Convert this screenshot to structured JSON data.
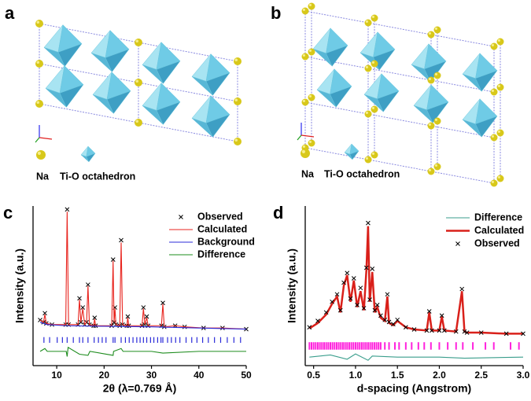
{
  "panels": [
    {
      "label": "a",
      "legend": [
        "Na",
        "Ti-O octahedron"
      ]
    },
    {
      "label": "b",
      "legend": [
        "Na",
        "Ti-O octahedron"
      ]
    }
  ],
  "chart_data": [
    {
      "type": "line",
      "label": "c",
      "xlabel": "2θ (λ=0.769 Å)",
      "ylabel": "Intensity (a.u.)",
      "xlim": [
        5,
        50
      ],
      "xticks": [
        10,
        20,
        30,
        40,
        50
      ],
      "ylim": [
        -30,
        110
      ],
      "series": [
        {
          "name": "Observed",
          "color": "#000000",
          "kind": "marker",
          "x": [
            6.5,
            7.2,
            7.5,
            7.8,
            9,
            11.9,
            12.2,
            12.5,
            14.5,
            14.8,
            15.1,
            15.5,
            15.9,
            16.3,
            16.6,
            16.9,
            17.8,
            18,
            18.2,
            21.6,
            21.9,
            22.1,
            22.3,
            22.5,
            23.3,
            23.6,
            23.9,
            24.8,
            25,
            25.2,
            28,
            28.3,
            28.6,
            29,
            29.3,
            32.1,
            32.4,
            32.7,
            35,
            37,
            41,
            45,
            50
          ],
          "values": [
            10,
            8,
            16,
            7,
            6,
            6,
            107,
            6,
            6,
            29,
            8,
            21,
            6,
            8,
            41,
            6,
            5,
            12,
            5,
            5,
            63,
            8,
            21,
            6,
            5,
            80,
            6,
            5,
            13,
            5,
            5,
            21,
            6,
            13,
            5,
            5,
            25,
            4,
            5,
            4,
            3,
            3,
            2
          ]
        },
        {
          "name": "Calculated",
          "color": "#e8251f",
          "kind": "line",
          "x": [
            6.5,
            7.2,
            7.5,
            7.8,
            9,
            11.9,
            12.2,
            12.5,
            14.5,
            14.8,
            15.1,
            15.5,
            15.9,
            16.3,
            16.6,
            16.9,
            17.8,
            18,
            18.2,
            21.6,
            21.9,
            22.1,
            22.3,
            22.5,
            23.3,
            23.6,
            23.9,
            24.8,
            25,
            25.2,
            28,
            28.3,
            28.6,
            29,
            29.3,
            32.1,
            32.4,
            32.7,
            35,
            37,
            41,
            45,
            50
          ],
          "values": [
            10,
            8,
            15,
            7,
            6,
            6,
            105,
            6,
            6,
            28,
            8,
            20,
            6,
            8,
            40,
            6,
            5,
            11,
            5,
            5,
            62,
            8,
            20,
            6,
            5,
            78,
            6,
            5,
            12,
            5,
            5,
            20,
            6,
            12,
            5,
            5,
            24,
            4,
            5,
            4,
            3,
            3,
            2
          ]
        },
        {
          "name": "Background",
          "color": "#2b2bd9",
          "kind": "line",
          "x": [
            6.5,
            8,
            12,
            20,
            30,
            40,
            50
          ],
          "values": [
            8,
            6,
            5,
            4.5,
            4,
            3,
            2
          ]
        },
        {
          "name": "Difference",
          "color": "#1e8c1e",
          "kind": "line",
          "x": [
            6.5,
            7.5,
            8,
            12,
            12.2,
            12.4,
            14.8,
            16.6,
            17,
            21.9,
            22,
            23.6,
            24,
            30,
            32.4,
            40,
            50
          ],
          "values": [
            -17.5,
            -15,
            -17.5,
            -17.5,
            -22,
            -14,
            -20,
            -21,
            -17.5,
            -21,
            -17.5,
            -15,
            -17.5,
            -17.5,
            -19,
            -17.5,
            -17.5
          ]
        }
      ],
      "bragg_color": "#2b2bd9",
      "bragg_range": [
        -5,
        -10
      ],
      "bragg_positions": [
        7.3,
        8.5,
        10.1,
        11.2,
        12.2,
        13.5,
        14.8,
        15.5,
        16.6,
        17.9,
        18.8,
        19.6,
        20.4,
        21.9,
        22.3,
        23.6,
        24.5,
        25.3,
        26.1,
        26.9,
        27.6,
        28.3,
        29.0,
        29.8,
        30.5,
        31.3,
        32.0,
        32.4,
        33.4,
        34.2,
        35.1,
        36.0,
        37.3,
        38.5,
        39.6,
        40.8,
        42.0,
        43.3,
        44.6,
        46.0,
        47.4,
        48.8
      ]
    },
    {
      "type": "line",
      "label": "d",
      "xlabel": "d-spacing (Angstrom)",
      "ylabel": "Intensity (a.u.)",
      "xlim": [
        0.4,
        3.0
      ],
      "xticks": [
        0.5,
        {
          "value": 1,
          "label": "1.0"
        },
        1.5,
        {
          "value": 2,
          "label": "2.0"
        },
        2.5,
        {
          "value": 3,
          "label": "3.0"
        }
      ],
      "ylim": [
        -30,
        120
      ],
      "series": [
        {
          "name": "Difference",
          "color": "#3a9e8c",
          "kind": "line",
          "x": [
            0.45,
            0.7,
            0.9,
            1.0,
            1.15,
            1.2,
            1.5,
            2.0,
            2.3,
            3.0
          ],
          "values": [
            -22,
            -20,
            -24,
            -19,
            -25,
            -21,
            -22,
            -22,
            -23,
            -22
          ]
        },
        {
          "name": "Calculated",
          "color": "#d9201a",
          "kind": "line",
          "width": 2.5,
          "x": [
            0.45,
            0.55,
            0.65,
            0.72,
            0.78,
            0.82,
            0.86,
            0.9,
            0.94,
            0.98,
            1.02,
            1.06,
            1.1,
            1.13,
            1.15,
            1.17,
            1.2,
            1.23,
            1.26,
            1.3,
            1.35,
            1.38,
            1.4,
            1.45,
            1.5,
            1.6,
            1.7,
            1.85,
            1.88,
            1.91,
            2.0,
            2.03,
            2.06,
            2.2,
            2.27,
            2.3,
            2.33,
            2.5,
            2.8,
            3.0
          ],
          "values": [
            5,
            10,
            18,
            28,
            35,
            20,
            45,
            55,
            30,
            50,
            25,
            40,
            22,
            60,
            101,
            30,
            58,
            20,
            25,
            15,
            12,
            35,
            10,
            8,
            12,
            6,
            4,
            3,
            20,
            3,
            3,
            16,
            3,
            2,
            40,
            2,
            1,
            1,
            0,
            0
          ]
        },
        {
          "name": "Observed",
          "color": "#000000",
          "kind": "marker",
          "x": [
            0.45,
            0.55,
            0.65,
            0.72,
            0.78,
            0.82,
            0.86,
            0.9,
            0.94,
            0.98,
            1.02,
            1.06,
            1.1,
            1.13,
            1.15,
            1.17,
            1.2,
            1.23,
            1.26,
            1.3,
            1.35,
            1.38,
            1.4,
            1.45,
            1.5,
            1.6,
            1.7,
            1.85,
            1.88,
            1.91,
            2.0,
            2.03,
            2.06,
            2.2,
            2.27,
            2.3,
            2.33,
            2.5,
            2.8,
            3.0
          ],
          "values": [
            6,
            12,
            20,
            30,
            37,
            22,
            48,
            57,
            33,
            52,
            27,
            43,
            24,
            62,
            104,
            32,
            61,
            22,
            27,
            17,
            13,
            37,
            11,
            9,
            13,
            6,
            4,
            3,
            21,
            3,
            3,
            17,
            3,
            2,
            42,
            2,
            1,
            1,
            0,
            0
          ]
        }
      ],
      "bragg_color": "#ff22dd",
      "bragg_range": [
        -8,
        -15
      ],
      "bragg_positions": [
        0.45,
        0.475,
        0.5,
        0.525,
        0.55,
        0.575,
        0.6,
        0.625,
        0.65,
        0.675,
        0.7,
        0.725,
        0.75,
        0.775,
        0.8,
        0.825,
        0.85,
        0.875,
        0.9,
        0.925,
        0.95,
        0.975,
        1.0,
        1.025,
        1.05,
        1.075,
        1.1,
        1.125,
        1.15,
        1.175,
        1.2,
        1.225,
        1.25,
        1.275,
        1.3,
        1.35,
        1.4,
        1.47,
        1.52,
        1.6,
        1.67,
        1.75,
        1.82,
        1.9,
        2.0,
        2.1,
        2.2,
        2.28,
        2.4,
        2.55,
        2.65,
        2.85,
        2.95
      ]
    }
  ]
}
